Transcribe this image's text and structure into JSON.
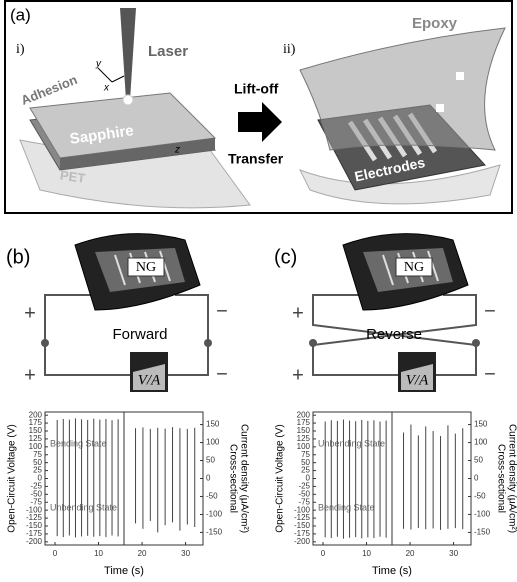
{
  "panel_a": {
    "label": "(a)",
    "step_1": "i)",
    "step_2": "ii)",
    "laser": "Laser",
    "axes": [
      "y",
      "x",
      "z"
    ],
    "adhesion": "Adhesion",
    "sapphire": "Sapphire",
    "pet": "PET",
    "lift_off": "Lift-off",
    "transfer": "Transfer",
    "epoxy": "Epoxy",
    "electrodes": "Electrodes"
  },
  "panel_b": {
    "label": "(b)",
    "device": "NG",
    "mode": "Forward",
    "plus": "+",
    "minus": "−",
    "meter": "V/A"
  },
  "panel_c": {
    "label": "(c)",
    "device": "NG",
    "mode": "Reverse",
    "plus": "+",
    "minus": "−",
    "meter": "V/A"
  },
  "chart_data": [
    {
      "type": "spike",
      "xlabel": "Time (s)",
      "ylabel": "Open-Circuit Voltage (V)",
      "y2label": [
        "Cross-sectional",
        "Current density (μA/cm²)"
      ],
      "annotations": [
        "Bending State",
        "Unbending State"
      ],
      "xlim": [
        -2.3,
        34
      ],
      "ylim": [
        -210,
        210
      ],
      "y2lim": [
        -185,
        185
      ],
      "xticks": [
        0,
        10,
        20,
        30
      ],
      "yticks": [
        -200,
        -175,
        -150,
        -125,
        -100,
        -75,
        -50,
        -25,
        0,
        25,
        50,
        75,
        100,
        125,
        150,
        175,
        200
      ],
      "y2ticks": [
        -150,
        -100,
        -50,
        0,
        50,
        100,
        150
      ],
      "series": [
        {
          "color": "#444444",
          "x": [
            0.5,
            1.9,
            3.3,
            4.7,
            6.1,
            7.5,
            8.9,
            10.3,
            11.7,
            13.1,
            14.5
          ],
          "values": [
            185,
            188,
            186,
            190,
            187,
            185,
            189,
            186,
            188,
            184,
            187
          ]
        },
        {
          "color": "#444444",
          "x": [
            0.5,
            1.9,
            3.3,
            4.7,
            6.1,
            7.5,
            8.9,
            10.3,
            11.7,
            13.1,
            14.5
          ],
          "values": [
            -182,
            -185,
            -180,
            -186,
            -183,
            -181,
            -184,
            -182,
            -185,
            -180,
            -183
          ]
        },
        {
          "color": "#444444",
          "axis": "y2",
          "x": [
            18.5,
            20.2,
            21.9,
            23.6,
            25.3,
            27,
            28.7,
            30.4,
            32.1
          ],
          "values": [
            140,
            142,
            138,
            141,
            139,
            143,
            140,
            138,
            141
          ]
        },
        {
          "color": "#444444",
          "axis": "y2",
          "x": [
            18.5,
            20.2,
            21.9,
            23.6,
            25.3,
            27,
            28.7,
            30.4,
            32.1
          ],
          "values": [
            -125,
            -140,
            -118,
            -150,
            -130,
            -122,
            -145,
            -128,
            -135
          ]
        }
      ]
    },
    {
      "type": "spike",
      "xlabel": "Time (s)",
      "ylabel": "Open-Circuit Voltage (V)",
      "y2label": [
        "Cross-sectional",
        "Current density (μA/cm²)"
      ],
      "annotations": [
        "Unbending State",
        "Bending State"
      ],
      "xlim": [
        -2.3,
        34
      ],
      "ylim": [
        -210,
        210
      ],
      "y2lim": [
        -185,
        185
      ],
      "xticks": [
        0,
        10,
        20,
        30
      ],
      "yticks": [
        -200,
        -175,
        -150,
        -125,
        -100,
        -75,
        -50,
        -25,
        0,
        25,
        50,
        75,
        100,
        125,
        150,
        175,
        200
      ],
      "y2ticks": [
        -150,
        -100,
        -50,
        0,
        50,
        100,
        150
      ],
      "series": [
        {
          "color": "#444444",
          "x": [
            0.5,
            1.9,
            3.3,
            4.7,
            6.1,
            7.5,
            8.9,
            10.3,
            11.7,
            13.1,
            14.5
          ],
          "values": [
            180,
            184,
            182,
            186,
            183,
            181,
            185,
            182,
            184,
            180,
            183
          ]
        },
        {
          "color": "#444444",
          "x": [
            0.5,
            1.9,
            3.3,
            4.7,
            6.1,
            7.5,
            8.9,
            10.3,
            11.7,
            13.1,
            14.5
          ],
          "values": [
            -186,
            -188,
            -184,
            -190,
            -187,
            -185,
            -189,
            -186,
            -188,
            -184,
            -187
          ]
        },
        {
          "color": "#444444",
          "axis": "y2",
          "x": [
            18.5,
            20.2,
            21.9,
            23.6,
            25.3,
            27,
            28.7,
            30.4,
            32.1
          ],
          "values": [
            128,
            150,
            120,
            145,
            132,
            118,
            148,
            125,
            140
          ]
        },
        {
          "color": "#444444",
          "axis": "y2",
          "x": [
            18.5,
            20.2,
            21.9,
            23.6,
            25.3,
            27,
            28.7,
            30.4,
            32.1
          ],
          "values": [
            -140,
            -142,
            -138,
            -141,
            -139,
            -143,
            -140,
            -138,
            -141
          ]
        }
      ]
    }
  ]
}
